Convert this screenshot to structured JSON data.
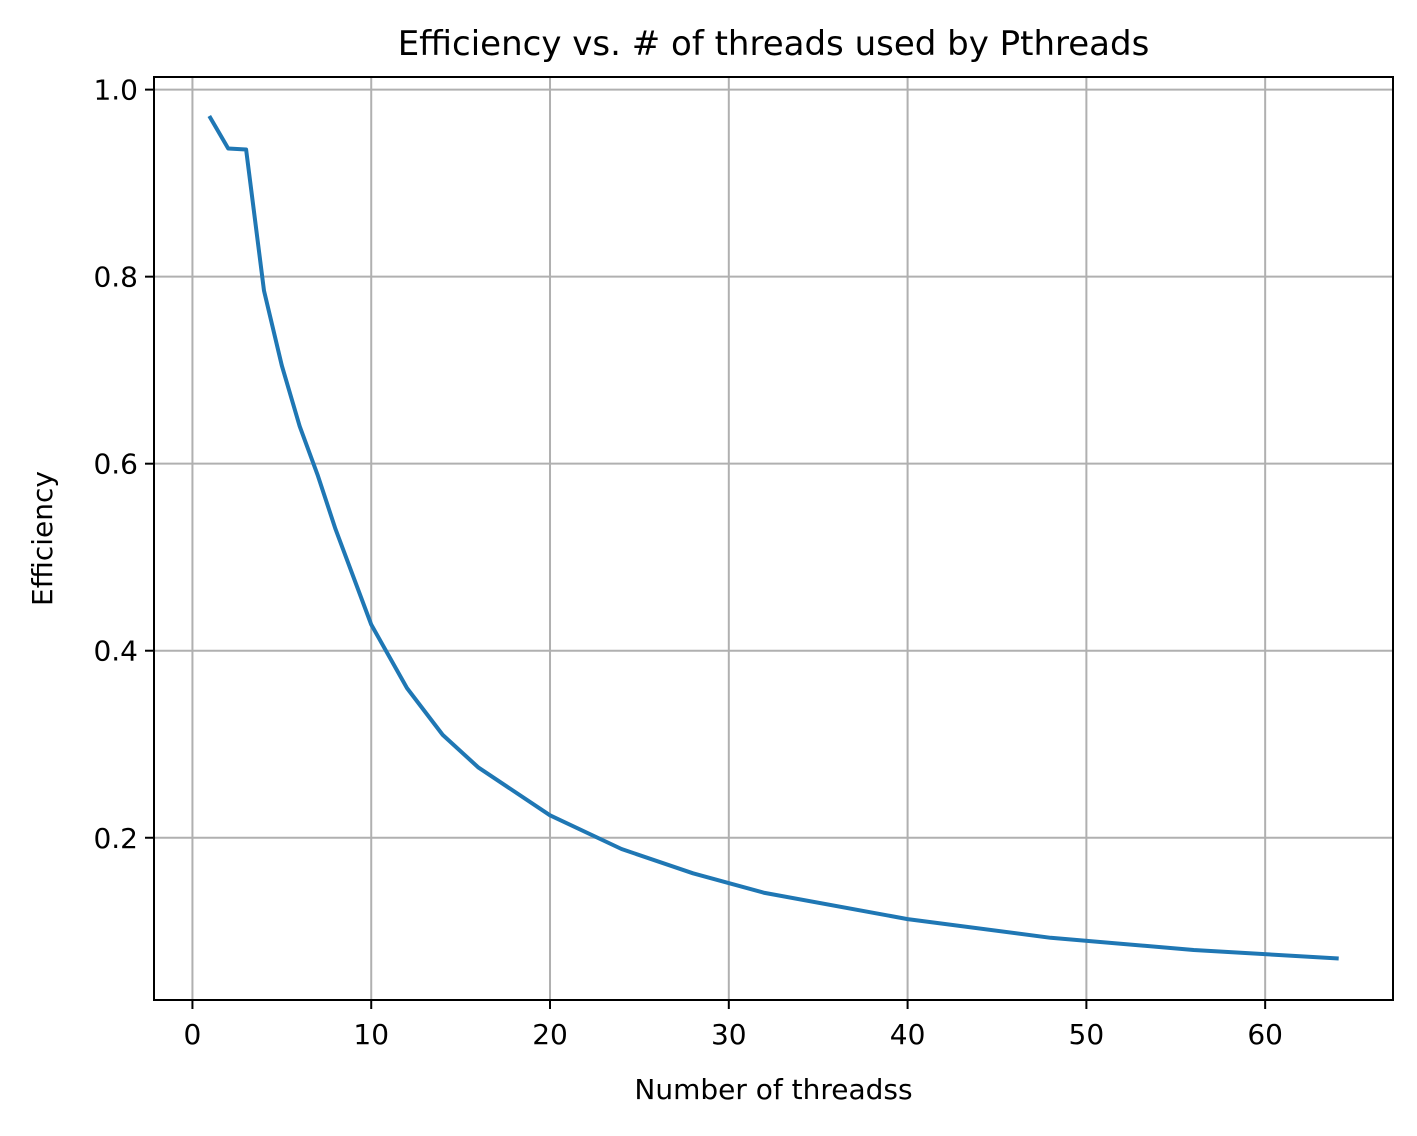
{
  "chart_data": {
    "type": "line",
    "title": "Efficiency vs. # of threads used by Pthreads",
    "xlabel": "Number of threadss",
    "ylabel": "Efficiency",
    "xlim": [
      -2.15,
      67.15
    ],
    "ylim": [
      0.0265,
      1.0135
    ],
    "xticks": [
      0,
      10,
      20,
      30,
      40,
      50,
      60
    ],
    "yticks": [
      0.2,
      0.4,
      0.6,
      0.8,
      1.0
    ],
    "xtick_labels": [
      "0",
      "10",
      "20",
      "30",
      "40",
      "50",
      "60"
    ],
    "ytick_labels": [
      "0.2",
      "0.4",
      "0.6",
      "0.8",
      "1.0"
    ],
    "grid": true,
    "series": [
      {
        "color": "#1f77b4",
        "x": [
          1,
          2,
          3,
          4,
          5,
          6,
          7,
          8,
          10,
          12,
          14,
          16,
          20,
          24,
          28,
          32,
          40,
          48,
          56,
          64
        ],
        "y": [
          0.97,
          0.937,
          0.936,
          0.785,
          0.705,
          0.64,
          0.588,
          0.53,
          0.428,
          0.36,
          0.31,
          0.275,
          0.224,
          0.188,
          0.162,
          0.141,
          0.113,
          0.093,
          0.08,
          0.071
        ]
      }
    ]
  }
}
